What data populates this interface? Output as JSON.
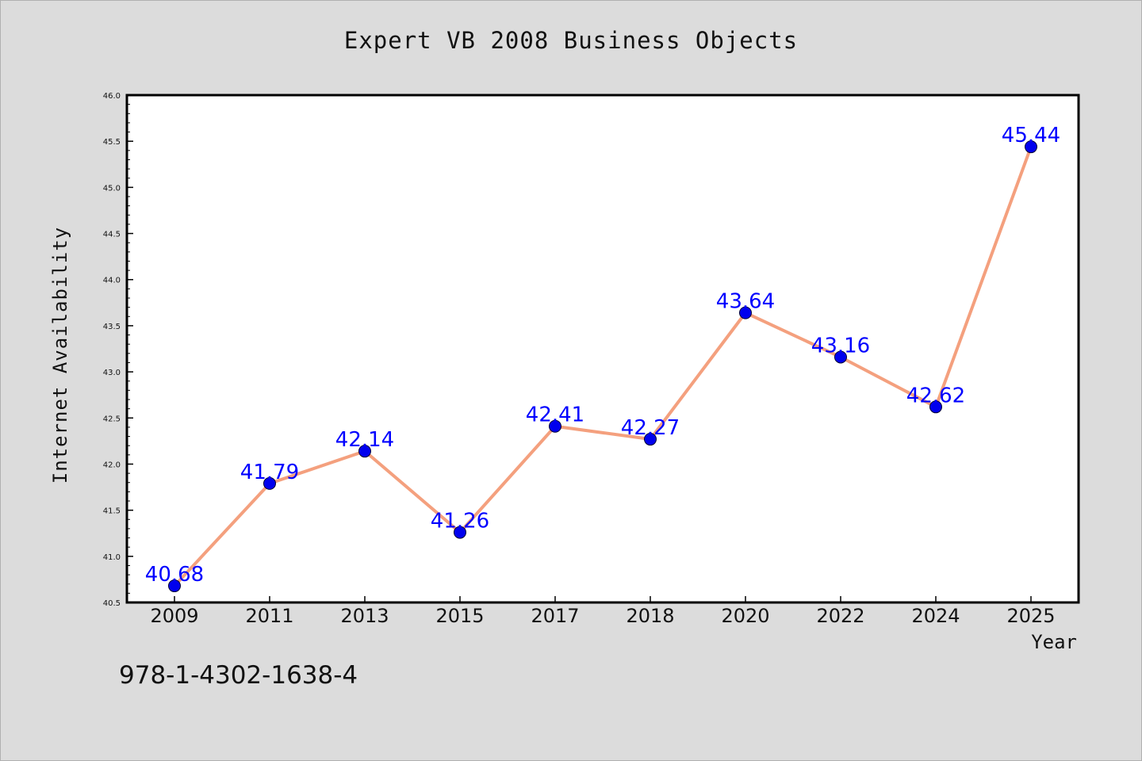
{
  "chart_data": {
    "type": "line",
    "title": "Expert VB 2008 Business Objects",
    "xlabel": "Year",
    "ylabel": "Internet Availability",
    "categories": [
      "2009",
      "2011",
      "2013",
      "2015",
      "2017",
      "2018",
      "2020",
      "2022",
      "2024",
      "2025"
    ],
    "series": [
      {
        "values": [
          40.68,
          41.79,
          42.14,
          41.26,
          42.41,
          42.27,
          43.64,
          43.16,
          42.62,
          45.44
        ]
      }
    ],
    "data_labels": [
      "40.68",
      "41.79",
      "42.14",
      "41.26",
      "42.41",
      "42.27",
      "43.64",
      "43.16",
      "42.62",
      "45.44"
    ],
    "ylim": [
      40.5,
      46.0
    ],
    "yticks": [
      "40.5",
      "41.0",
      "41.5",
      "42.0",
      "42.5",
      "43.0",
      "43.5",
      "44.0",
      "44.5",
      "45.0",
      "45.5",
      "46.0"
    ],
    "grid": false,
    "legend": "none",
    "colors": {
      "line": "#f4a07e",
      "marker": "#0000ee",
      "label": "#0000ff",
      "background": "#dcdcdc",
      "plot_background": "#ffffff"
    }
  },
  "footnote": "978-1-4302-1638-4"
}
